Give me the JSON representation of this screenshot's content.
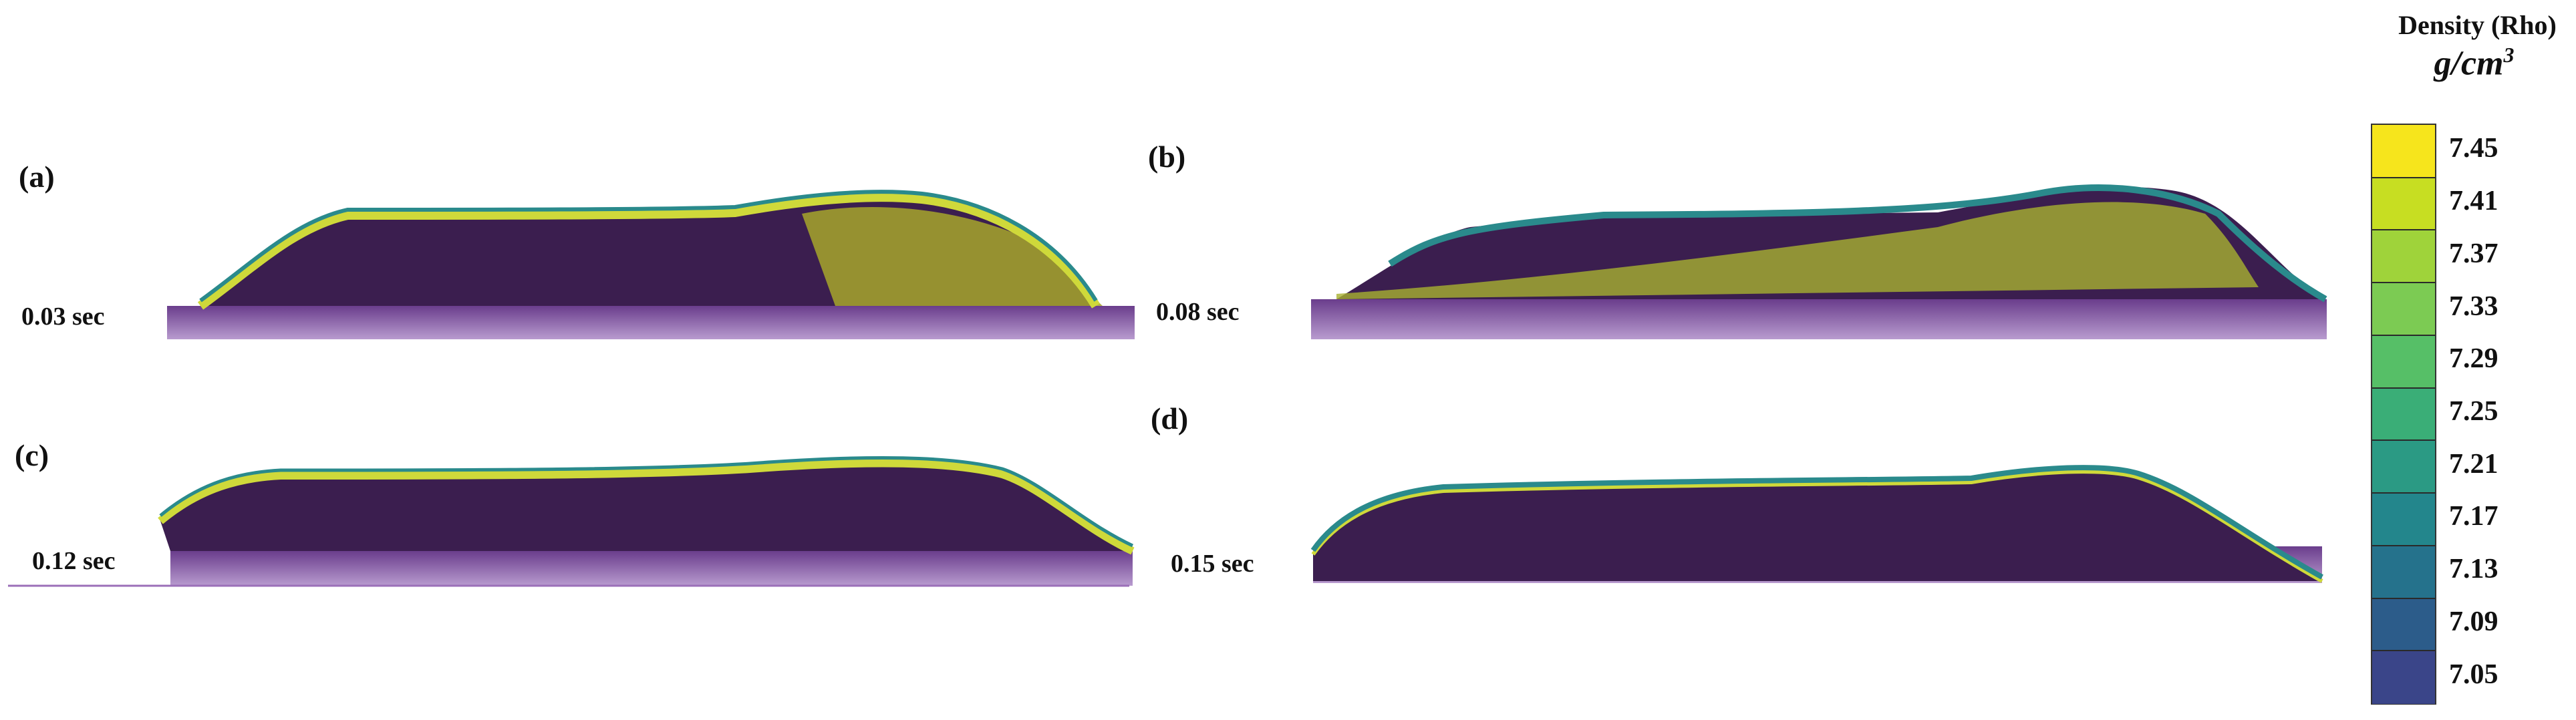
{
  "colorbar": {
    "title": "Density (Rho)",
    "unit_base": "g/cm",
    "unit_exp": "3",
    "ticks": [
      "7.45",
      "7.41",
      "7.37",
      "7.33",
      "7.29",
      "7.25",
      "7.21",
      "7.17",
      "7.13",
      "7.09",
      "7.05"
    ],
    "colors": [
      "#f6e51c",
      "#c7de22",
      "#9fd33a",
      "#7ccb53",
      "#56bf67",
      "#3aae77",
      "#2b9a84",
      "#23868c",
      "#25728c",
      "#2c5c8a",
      "#3a4589"
    ]
  },
  "panels": [
    {
      "letter": "(a)",
      "time": "0.03 sec"
    },
    {
      "letter": "(b)",
      "time": "0.08 sec"
    },
    {
      "letter": "(c)",
      "time": "0.12 sec"
    },
    {
      "letter": "(d)",
      "time": "0.15 sec"
    }
  ]
}
